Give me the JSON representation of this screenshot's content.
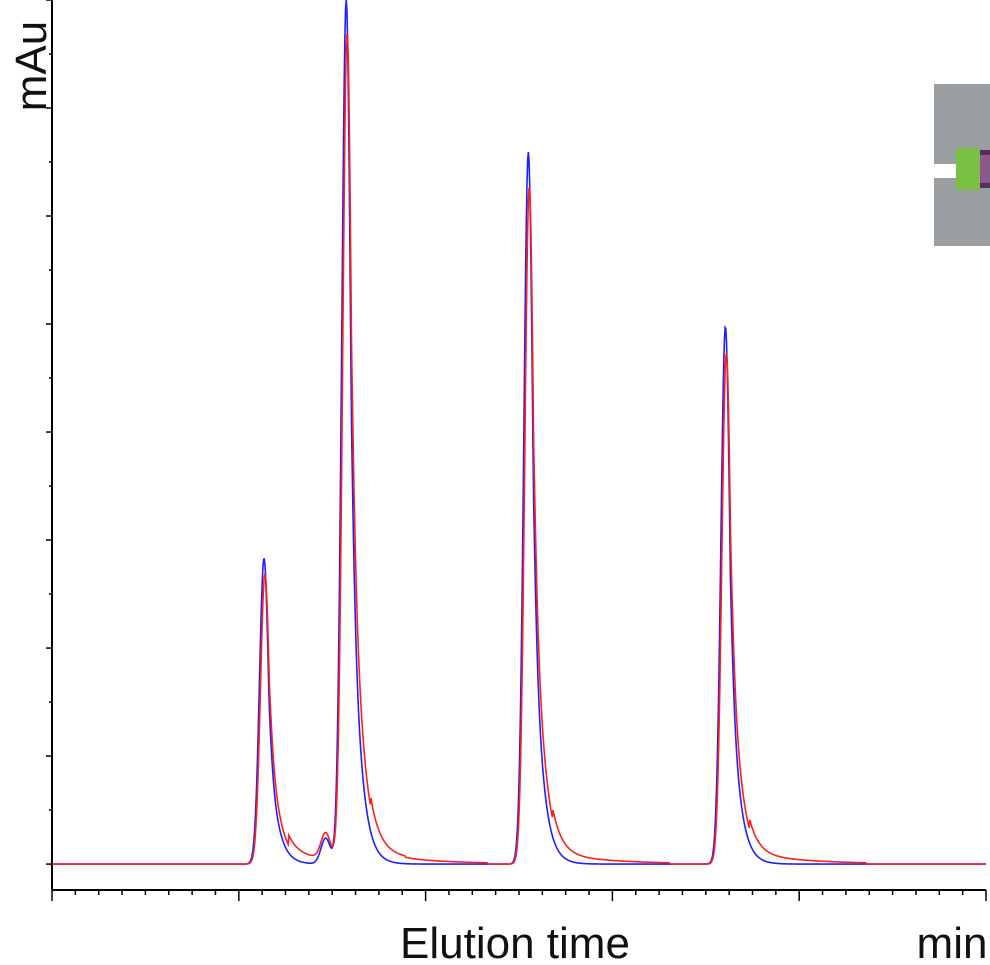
{
  "chart_data": {
    "type": "line",
    "title": "",
    "xlabel": "Elution time",
    "xunit": "min",
    "ylabel": "mAu",
    "xlim": [
      0,
      10
    ],
    "ylim": [
      -0.03,
      1.0
    ],
    "grid": false,
    "legend": "none",
    "x_tick_labels": [],
    "y_tick_labels": [],
    "colors": {
      "series_1": "#1f1fff",
      "series_2": "#ff1f1f",
      "inset_gray": "#9a9ea0",
      "inset_green": "#7ac143",
      "inset_purple": "#5a2d5e"
    },
    "series": [
      {
        "peaks": [
          {
            "x": 2.27,
            "height": 0.354
          },
          {
            "x": 3.15,
            "height": 1.0
          },
          {
            "x": 5.1,
            "height": 0.824
          },
          {
            "x": 7.21,
            "height": 0.622
          }
        ]
      },
      {
        "peaks": [
          {
            "x": 2.28,
            "height": 0.336
          },
          {
            "x": 3.16,
            "height": 0.958
          },
          {
            "x": 5.11,
            "height": 0.784
          },
          {
            "x": 7.22,
            "height": 0.592
          }
        ]
      }
    ],
    "shoulder": {
      "x": 2.93,
      "height": 0.03
    }
  },
  "inset": {
    "icon": "column-cartridge-icon"
  }
}
